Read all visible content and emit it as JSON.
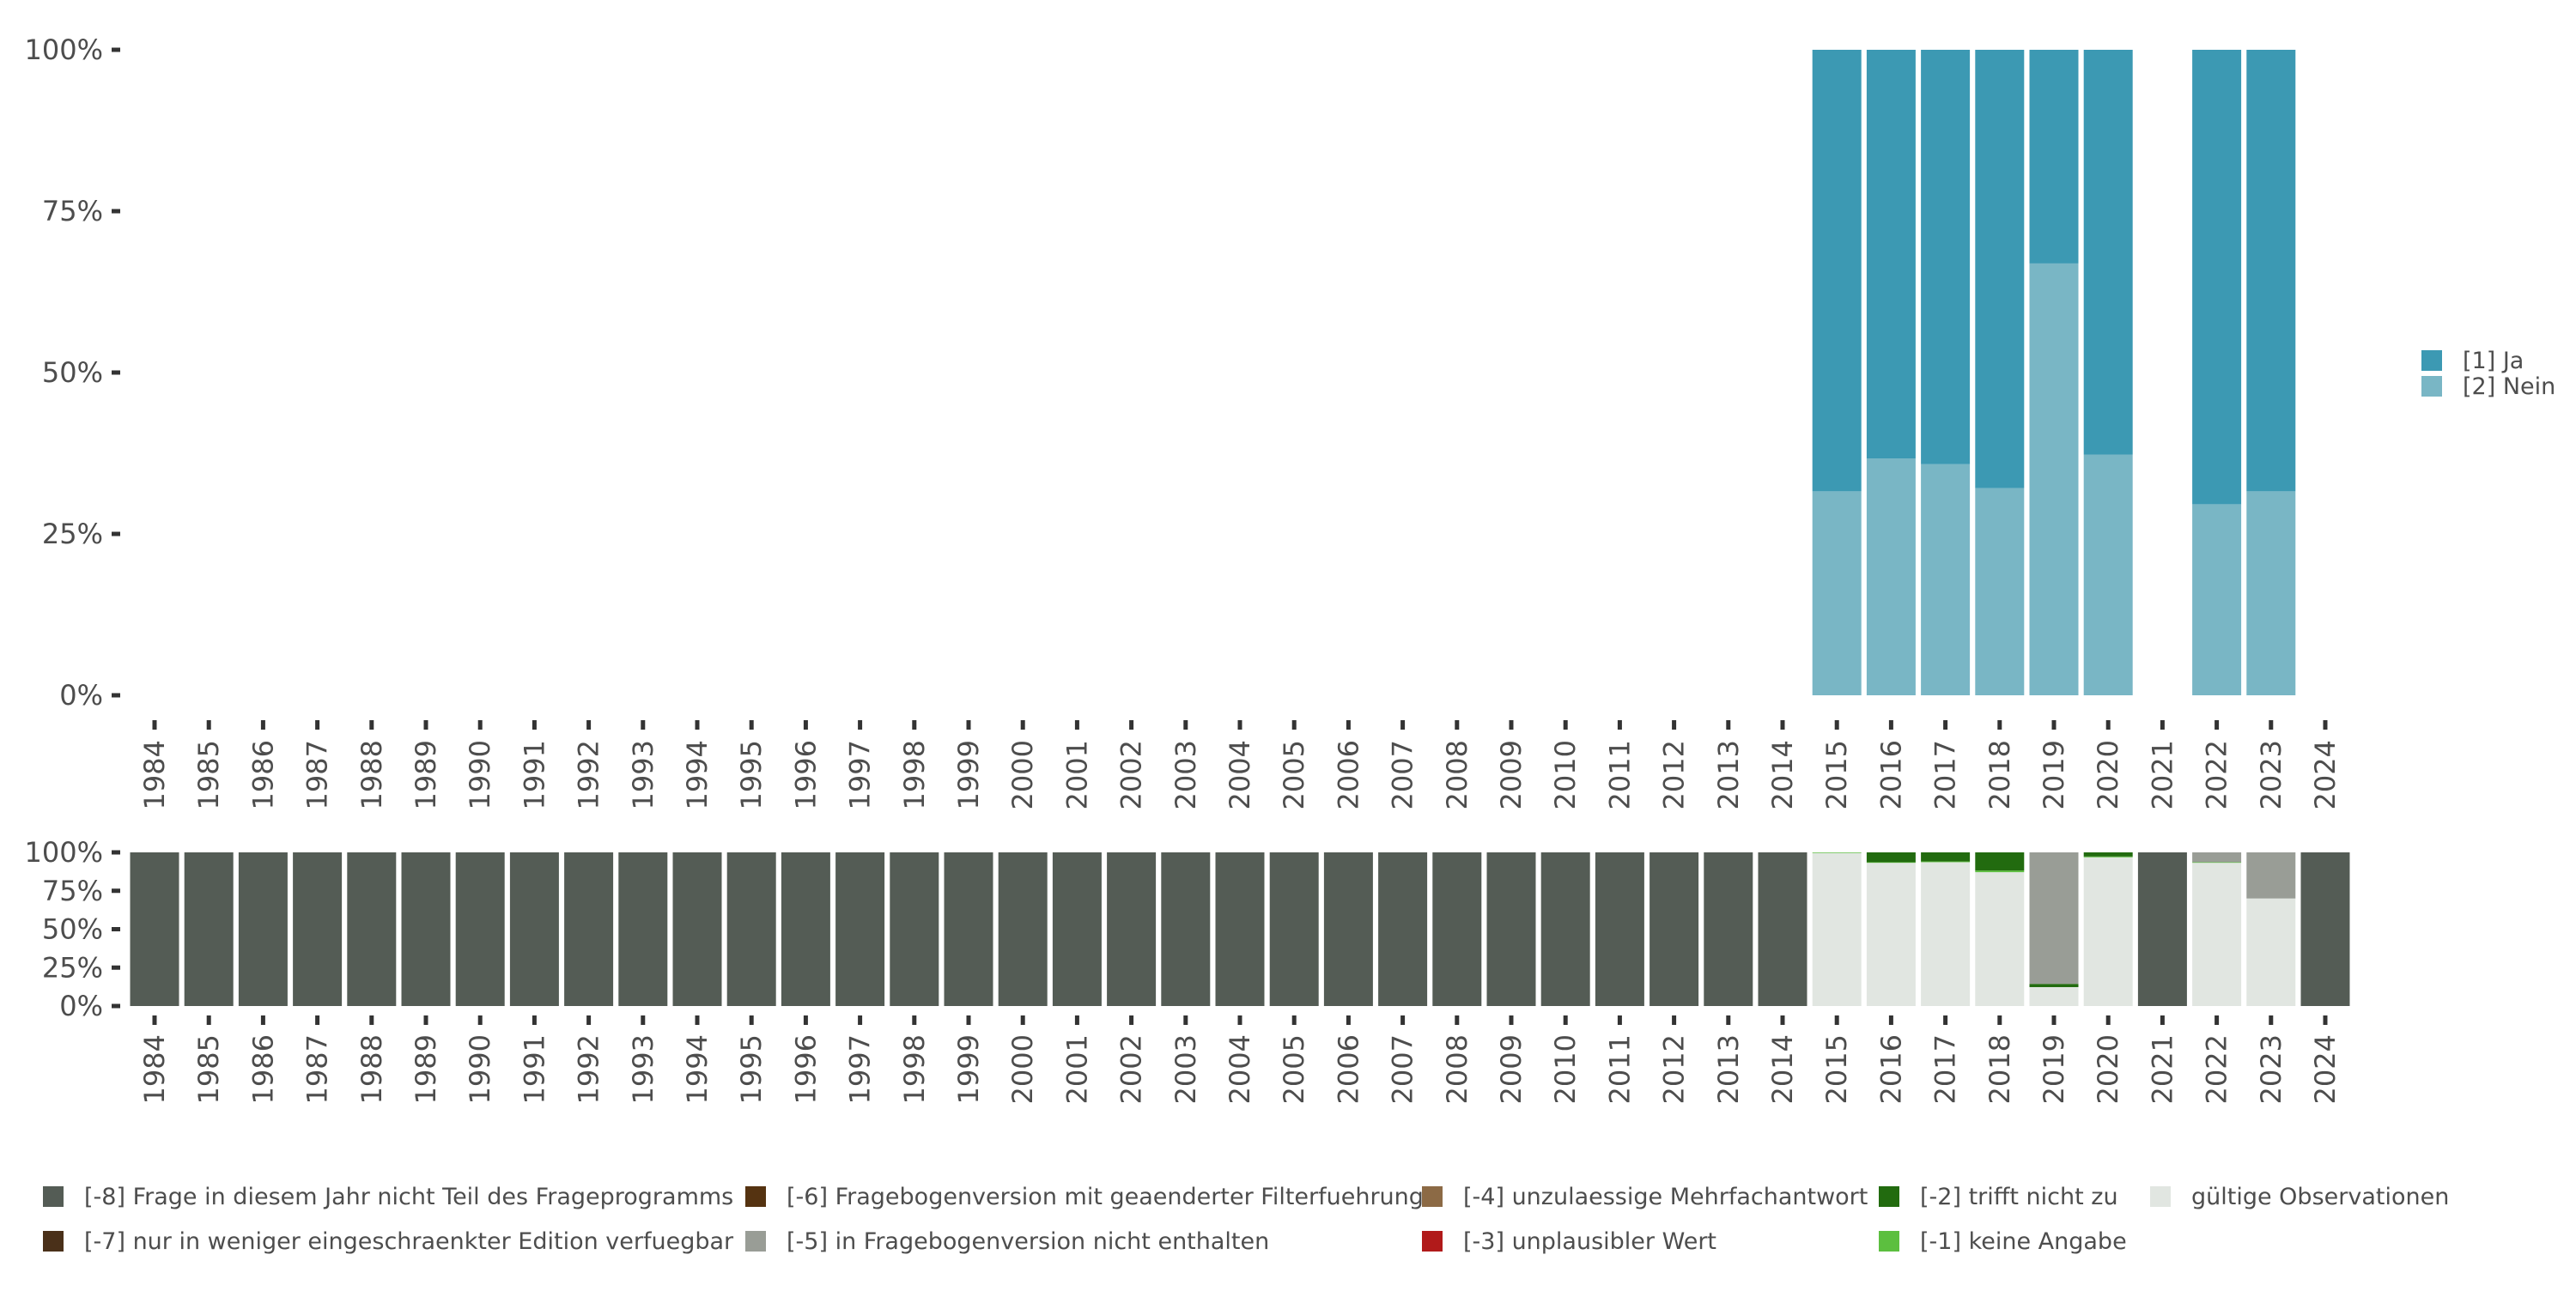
{
  "chart_data": [
    {
      "type": "bar",
      "stacked": true,
      "normalized": true,
      "categories": [
        "1984",
        "1985",
        "1986",
        "1987",
        "1988",
        "1989",
        "1990",
        "1991",
        "1992",
        "1993",
        "1994",
        "1995",
        "1996",
        "1997",
        "1998",
        "1999",
        "2000",
        "2001",
        "2002",
        "2003",
        "2004",
        "2005",
        "2006",
        "2007",
        "2008",
        "2009",
        "2010",
        "2011",
        "2012",
        "2013",
        "2014",
        "2015",
        "2016",
        "2017",
        "2018",
        "2019",
        "2020",
        "2021",
        "2022",
        "2023",
        "2024"
      ],
      "yticks": [
        "0%",
        "25%",
        "50%",
        "75%",
        "100%"
      ],
      "ylim": [
        0,
        1
      ],
      "legend_position": "right",
      "series": [
        {
          "name": "[2] Nein",
          "color": "#79b6c5",
          "values": {
            "2015": 0.316,
            "2016": 0.367,
            "2017": 0.358,
            "2018": 0.321,
            "2019": 0.669,
            "2020": 0.373,
            "2022": 0.296,
            "2023": 0.316
          }
        },
        {
          "name": "[1] Ja",
          "color": "#3c99b3",
          "values": {
            "2015": 0.684,
            "2016": 0.633,
            "2017": 0.642,
            "2018": 0.679,
            "2019": 0.331,
            "2020": 0.627,
            "2022": 0.704,
            "2023": 0.684
          }
        }
      ]
    },
    {
      "type": "bar",
      "stacked": true,
      "normalized": true,
      "categories": [
        "1984",
        "1985",
        "1986",
        "1987",
        "1988",
        "1989",
        "1990",
        "1991",
        "1992",
        "1993",
        "1994",
        "1995",
        "1996",
        "1997",
        "1998",
        "1999",
        "2000",
        "2001",
        "2002",
        "2003",
        "2004",
        "2005",
        "2006",
        "2007",
        "2008",
        "2009",
        "2010",
        "2011",
        "2012",
        "2013",
        "2014",
        "2015",
        "2016",
        "2017",
        "2018",
        "2019",
        "2020",
        "2021",
        "2022",
        "2023",
        "2024"
      ],
      "yticks": [
        "0%",
        "25%",
        "50%",
        "75%",
        "100%"
      ],
      "ylim": [
        0,
        1
      ],
      "legend_position": "bottom",
      "series": [
        {
          "name": "gültige Observationen",
          "color": "#e1e6e1",
          "values": {
            "2015": 0.996,
            "2016": 0.932,
            "2017": 0.936,
            "2018": 0.871,
            "2019": 0.123,
            "2020": 0.968,
            "2022": 0.932,
            "2023": 0.7
          }
        },
        {
          "name": "[-1] keine Angabe",
          "color": "#5cbf3f",
          "values": {
            "2015": 0.004,
            "2016": 0.004,
            "2017": 0.005,
            "2018": 0.011,
            "2020": 0.005,
            "2022": 0.004
          }
        },
        {
          "name": "[-2] trifft nicht zu",
          "color": "#226b0f",
          "values": {
            "2016": 0.064,
            "2017": 0.059,
            "2018": 0.118,
            "2019": 0.021,
            "2020": 0.027
          }
        },
        {
          "name": "[-3] unplausibler Wert",
          "color": "#b11a1a",
          "values": {}
        },
        {
          "name": "[-4] unzulaessige Mehrfachantwort",
          "color": "#8c6a45",
          "values": {}
        },
        {
          "name": "[-5] in Fragebogenversion nicht enthalten",
          "color": "#999d96",
          "values": {
            "2019": 0.856,
            "2022": 0.064,
            "2023": 0.3
          }
        },
        {
          "name": "[-6] Fragebogenversion mit geaenderter Filterfuehrung",
          "color": "#553311",
          "values": {}
        },
        {
          "name": "[-7] nur in weniger eingeschraenkter Edition verfuegbar",
          "color": "#4a3019",
          "values": {}
        },
        {
          "name": "[-8] Frage in diesem Jahr nicht Teil des Frageprogramms",
          "color": "#545c55",
          "values": {
            "1984": 1,
            "1985": 1,
            "1986": 1,
            "1987": 1,
            "1988": 1,
            "1989": 1,
            "1990": 1,
            "1991": 1,
            "1992": 1,
            "1993": 1,
            "1994": 1,
            "1995": 1,
            "1996": 1,
            "1997": 1,
            "1998": 1,
            "1999": 1,
            "2000": 1,
            "2001": 1,
            "2002": 1,
            "2003": 1,
            "2004": 1,
            "2005": 1,
            "2006": 1,
            "2007": 1,
            "2008": 1,
            "2009": 1,
            "2010": 1,
            "2011": 1,
            "2012": 1,
            "2013": 1,
            "2014": 1,
            "2021": 1,
            "2024": 1
          }
        }
      ]
    }
  ]
}
